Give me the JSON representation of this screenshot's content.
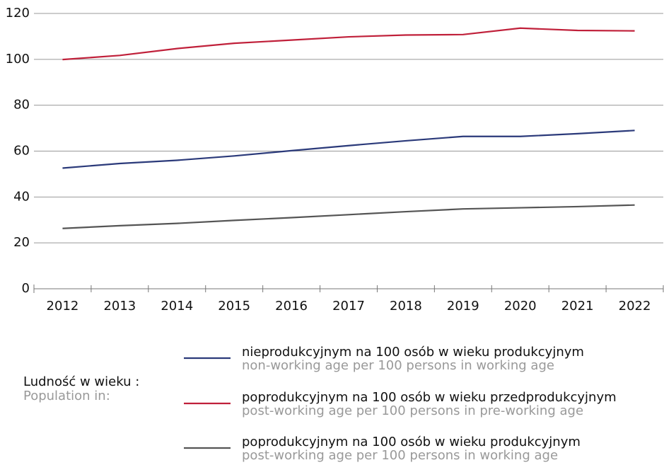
{
  "chart_data": {
    "type": "line",
    "categories": [
      "2012",
      "2013",
      "2014",
      "2015",
      "2016",
      "2017",
      "2018",
      "2019",
      "2020",
      "2021",
      "2022"
    ],
    "series": [
      {
        "name": "nieprodukcyjnym na 100 osób w wieku produkcyjnym",
        "name_en": "non-working age per 100 persons in working age",
        "color": "#2b3a7a",
        "values": [
          52.6,
          54.6,
          56.0,
          57.9,
          60.2,
          62.4,
          64.5,
          66.4,
          66.4,
          67.6,
          69.0
        ]
      },
      {
        "name": "poprodukcyjnym na 100 osób w wieku przedprodukcyjnym",
        "name_en": "post-working age per 100 persons in pre-working age",
        "color": "#c0203a",
        "values": [
          99.9,
          101.7,
          104.7,
          107.0,
          108.4,
          109.8,
          110.6,
          110.8,
          113.6,
          112.6,
          112.4
        ]
      },
      {
        "name": "poprodukcyjnym na 100 osób w wieku produkcyjnym",
        "name_en": "post-working age per 100 persons in working age",
        "color": "#555555",
        "values": [
          26.3,
          27.5,
          28.5,
          29.8,
          31.0,
          32.3,
          33.6,
          34.8,
          35.3,
          35.8,
          36.5
        ]
      }
    ],
    "ylim": [
      0,
      120
    ],
    "yticks": [
      0,
      20,
      40,
      60,
      80,
      100,
      120
    ],
    "grid": true,
    "legend_title": "Ludność w wieku :",
    "legend_title_en": "Population in:"
  }
}
